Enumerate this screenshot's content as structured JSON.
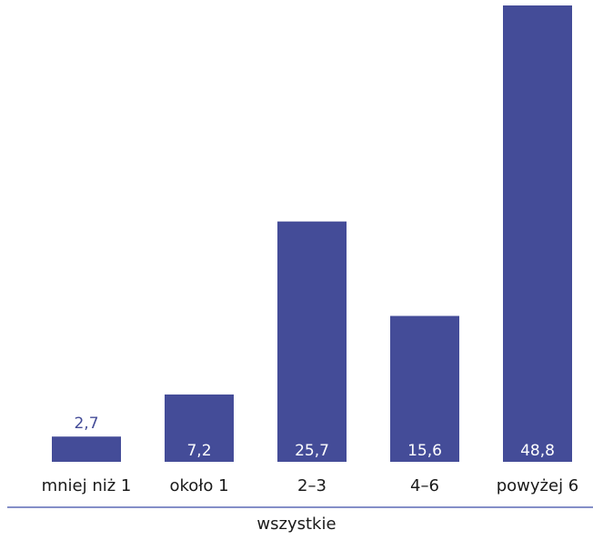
{
  "colors": {
    "bar": "#444c98",
    "label_inside": "#ffffff",
    "label_above": "#444c98",
    "axis_line": "#5c6ab5",
    "text": "#1a1a1a"
  },
  "chart_data": {
    "type": "bar",
    "categories": [
      "mniej niż 1",
      "około 1",
      "2–3",
      "4–6",
      "powyżej 6"
    ],
    "values": [
      2.7,
      7.2,
      25.7,
      15.6,
      48.8
    ],
    "value_labels": [
      "2,7",
      "7,2",
      "25,7",
      "15,6",
      "48,8"
    ],
    "group_label": "wszystkie",
    "title": "",
    "xlabel": "",
    "ylabel": "",
    "ylim": [
      0,
      48.8
    ],
    "grid": false,
    "legend": "none"
  }
}
